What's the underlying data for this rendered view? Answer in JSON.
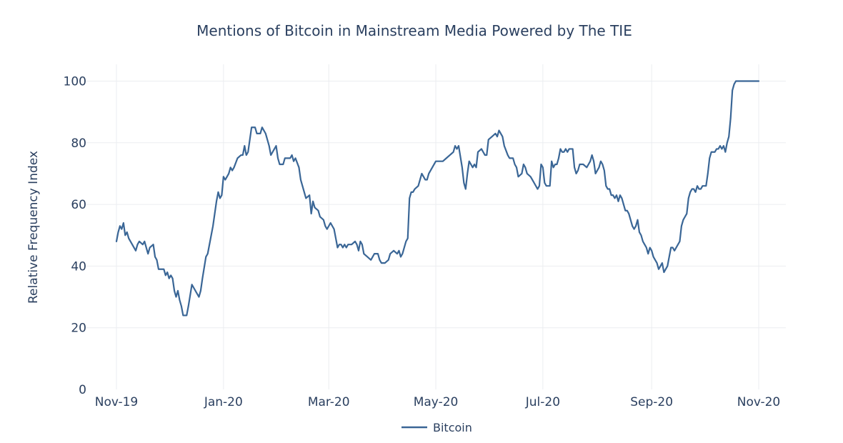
{
  "chart_data": {
    "type": "line",
    "title": "Mentions of Bitcoin in Mainstream Media Powered by The TIE",
    "xlabel": "",
    "ylabel": "Relative Frequency Index",
    "ylim": [
      0,
      100
    ],
    "yticks": [
      0,
      20,
      40,
      60,
      80,
      100
    ],
    "xlim": [
      0,
      365
    ],
    "xticks": [
      {
        "x": 0,
        "label": "Nov-19"
      },
      {
        "x": 61,
        "label": "Jan-20"
      },
      {
        "x": 121,
        "label": "Mar-20"
      },
      {
        "x": 182,
        "label": "May-20"
      },
      {
        "x": 243,
        "label": "Jul-20"
      },
      {
        "x": 305,
        "label": "Sep-20"
      },
      {
        "x": 366,
        "label": "Nov-20"
      }
    ],
    "grid": true,
    "legend": {
      "position": "bottom-center",
      "entries": [
        "Bitcoin"
      ]
    },
    "series": [
      {
        "name": "Bitcoin",
        "color": "#3a6696",
        "points": [
          [
            0,
            48
          ],
          [
            1,
            51
          ],
          [
            2,
            53
          ],
          [
            3,
            52
          ],
          [
            4,
            54
          ],
          [
            5,
            50
          ],
          [
            6,
            51
          ],
          [
            7,
            49
          ],
          [
            9,
            47
          ],
          [
            11,
            45
          ],
          [
            12,
            47
          ],
          [
            13,
            48
          ],
          [
            15,
            47
          ],
          [
            16,
            48
          ],
          [
            18,
            44
          ],
          [
            19,
            46
          ],
          [
            21,
            47
          ],
          [
            22,
            43
          ],
          [
            23,
            42
          ],
          [
            24,
            39
          ],
          [
            27,
            39
          ],
          [
            28,
            37
          ],
          [
            29,
            38
          ],
          [
            30,
            36
          ],
          [
            31,
            37
          ],
          [
            32,
            36
          ],
          [
            33,
            32
          ],
          [
            34,
            30
          ],
          [
            35,
            32
          ],
          [
            36,
            29
          ],
          [
            37,
            27
          ],
          [
            38,
            24
          ],
          [
            40,
            24
          ],
          [
            41,
            27
          ],
          [
            43,
            34
          ],
          [
            44,
            33
          ],
          [
            46,
            31
          ],
          [
            47,
            30
          ],
          [
            48,
            32
          ],
          [
            49,
            36
          ],
          [
            51,
            43
          ],
          [
            52,
            44
          ],
          [
            55,
            53
          ],
          [
            57,
            61
          ],
          [
            58,
            64
          ],
          [
            59,
            62
          ],
          [
            60,
            63
          ],
          [
            61,
            69
          ],
          [
            62,
            68
          ],
          [
            63,
            69
          ],
          [
            64,
            70
          ],
          [
            65,
            72
          ],
          [
            66,
            71
          ],
          [
            67,
            72
          ],
          [
            69,
            75
          ],
          [
            71,
            76
          ],
          [
            72,
            76
          ],
          [
            73,
            79
          ],
          [
            74,
            76
          ],
          [
            75,
            77
          ],
          [
            76,
            81
          ],
          [
            77,
            85
          ],
          [
            79,
            85
          ],
          [
            80,
            83
          ],
          [
            82,
            83
          ],
          [
            83,
            85
          ],
          [
            85,
            83
          ],
          [
            87,
            79
          ],
          [
            88,
            76
          ],
          [
            89,
            77
          ],
          [
            90,
            78
          ],
          [
            91,
            79
          ],
          [
            92,
            75
          ],
          [
            93,
            73
          ],
          [
            95,
            73
          ],
          [
            96,
            75
          ],
          [
            99,
            75
          ],
          [
            100,
            76
          ],
          [
            101,
            74
          ],
          [
            102,
            75
          ],
          [
            104,
            72
          ],
          [
            105,
            68
          ],
          [
            106,
            66
          ],
          [
            108,
            62
          ],
          [
            110,
            63
          ],
          [
            111,
            57
          ],
          [
            112,
            61
          ],
          [
            113,
            59
          ],
          [
            115,
            58
          ],
          [
            116,
            56
          ],
          [
            118,
            55
          ],
          [
            119,
            53
          ],
          [
            120,
            52
          ],
          [
            122,
            54
          ],
          [
            124,
            52
          ],
          [
            125,
            49
          ],
          [
            126,
            46
          ],
          [
            127,
            47
          ],
          [
            128,
            47
          ],
          [
            129,
            46
          ],
          [
            130,
            47
          ],
          [
            131,
            46
          ],
          [
            132,
            47
          ],
          [
            134,
            47
          ],
          [
            136,
            48
          ],
          [
            137,
            47
          ],
          [
            138,
            45
          ],
          [
            139,
            48
          ],
          [
            140,
            47
          ],
          [
            141,
            44
          ],
          [
            143,
            43
          ],
          [
            145,
            42
          ],
          [
            147,
            44
          ],
          [
            149,
            44
          ],
          [
            150,
            42
          ],
          [
            151,
            41
          ],
          [
            153,
            41
          ],
          [
            155,
            42
          ],
          [
            156,
            44
          ],
          [
            158,
            45
          ],
          [
            160,
            44
          ],
          [
            161,
            45
          ],
          [
            162,
            43
          ],
          [
            163,
            44
          ],
          [
            165,
            48
          ],
          [
            166,
            49
          ],
          [
            167,
            62
          ],
          [
            168,
            64
          ],
          [
            169,
            64
          ],
          [
            170,
            65
          ],
          [
            172,
            66
          ],
          [
            174,
            70
          ],
          [
            175,
            69
          ],
          [
            176,
            68
          ],
          [
            177,
            68
          ],
          [
            178,
            70
          ],
          [
            180,
            72
          ],
          [
            182,
            74
          ],
          [
            184,
            74
          ],
          [
            186,
            74
          ],
          [
            188,
            75
          ],
          [
            190,
            76
          ],
          [
            192,
            77
          ],
          [
            193,
            79
          ],
          [
            194,
            78
          ],
          [
            195,
            79
          ],
          [
            197,
            72
          ],
          [
            198,
            67
          ],
          [
            199,
            65
          ],
          [
            200,
            70
          ],
          [
            201,
            74
          ],
          [
            203,
            72
          ],
          [
            204,
            73
          ],
          [
            205,
            72
          ],
          [
            206,
            77
          ],
          [
            208,
            78
          ],
          [
            209,
            77
          ],
          [
            210,
            76
          ],
          [
            211,
            76
          ],
          [
            212,
            81
          ],
          [
            214,
            82
          ],
          [
            216,
            83
          ],
          [
            217,
            82
          ],
          [
            218,
            84
          ],
          [
            220,
            82
          ],
          [
            221,
            79
          ],
          [
            223,
            76
          ],
          [
            224,
            75
          ],
          [
            226,
            75
          ],
          [
            227,
            73
          ],
          [
            228,
            72
          ],
          [
            229,
            69
          ],
          [
            231,
            70
          ],
          [
            232,
            73
          ],
          [
            233,
            72
          ],
          [
            234,
            70
          ],
          [
            236,
            69
          ],
          [
            237,
            68
          ],
          [
            238,
            67
          ],
          [
            240,
            65
          ],
          [
            241,
            66
          ],
          [
            242,
            73
          ],
          [
            243,
            72
          ],
          [
            244,
            67
          ],
          [
            245,
            66
          ],
          [
            246,
            66
          ],
          [
            247,
            66
          ],
          [
            248,
            74
          ],
          [
            249,
            72
          ],
          [
            250,
            73
          ],
          [
            251,
            73
          ],
          [
            252,
            75
          ],
          [
            253,
            78
          ],
          [
            254,
            77
          ],
          [
            255,
            77
          ],
          [
            256,
            78
          ],
          [
            257,
            77
          ],
          [
            258,
            78
          ],
          [
            260,
            78
          ],
          [
            261,
            72
          ],
          [
            262,
            70
          ],
          [
            263,
            71
          ],
          [
            264,
            73
          ],
          [
            266,
            73
          ],
          [
            268,
            72
          ],
          [
            269,
            73
          ],
          [
            270,
            74
          ],
          [
            271,
            76
          ],
          [
            272,
            74
          ],
          [
            273,
            70
          ],
          [
            274,
            71
          ],
          [
            275,
            72
          ],
          [
            276,
            74
          ],
          [
            277,
            73
          ],
          [
            278,
            71
          ],
          [
            279,
            66
          ],
          [
            280,
            65
          ],
          [
            281,
            65
          ],
          [
            282,
            63
          ],
          [
            283,
            63
          ],
          [
            284,
            62
          ],
          [
            285,
            63
          ],
          [
            286,
            61
          ],
          [
            287,
            63
          ],
          [
            288,
            62
          ],
          [
            289,
            60
          ],
          [
            290,
            58
          ],
          [
            291,
            58
          ],
          [
            292,
            57
          ],
          [
            293,
            55
          ],
          [
            294,
            53
          ],
          [
            295,
            52
          ],
          [
            296,
            53
          ],
          [
            297,
            55
          ],
          [
            298,
            51
          ],
          [
            299,
            50
          ],
          [
            300,
            48
          ],
          [
            301,
            47
          ],
          [
            302,
            46
          ],
          [
            303,
            44
          ],
          [
            304,
            46
          ],
          [
            305,
            45
          ],
          [
            306,
            43
          ],
          [
            307,
            42
          ],
          [
            308,
            41
          ],
          [
            309,
            39
          ],
          [
            310,
            40
          ],
          [
            311,
            41
          ],
          [
            312,
            38
          ],
          [
            313,
            39
          ],
          [
            314,
            40
          ],
          [
            315,
            43
          ],
          [
            316,
            46
          ],
          [
            317,
            46
          ],
          [
            318,
            45
          ],
          [
            319,
            46
          ],
          [
            320,
            47
          ],
          [
            321,
            48
          ],
          [
            322,
            53
          ],
          [
            323,
            55
          ],
          [
            324,
            56
          ],
          [
            325,
            57
          ],
          [
            326,
            62
          ],
          [
            327,
            64
          ],
          [
            328,
            65
          ],
          [
            329,
            65
          ],
          [
            330,
            64
          ],
          [
            331,
            66
          ],
          [
            332,
            65
          ],
          [
            333,
            65
          ],
          [
            334,
            66
          ],
          [
            335,
            66
          ],
          [
            336,
            66
          ],
          [
            337,
            70
          ],
          [
            338,
            75
          ],
          [
            339,
            77
          ],
          [
            340,
            77
          ],
          [
            341,
            77
          ],
          [
            342,
            78
          ],
          [
            343,
            78
          ],
          [
            344,
            79
          ],
          [
            345,
            78
          ],
          [
            346,
            79
          ],
          [
            347,
            77
          ],
          [
            348,
            80
          ],
          [
            349,
            82
          ],
          [
            350,
            88
          ],
          [
            351,
            97
          ],
          [
            352,
            99
          ],
          [
            353,
            100
          ],
          [
            354,
            100
          ],
          [
            355,
            100
          ],
          [
            356,
            100
          ],
          [
            357,
            100
          ],
          [
            358,
            100
          ],
          [
            359,
            100
          ],
          [
            360,
            100
          ],
          [
            361,
            100
          ],
          [
            362,
            100
          ],
          [
            363,
            100
          ],
          [
            364,
            100
          ],
          [
            365,
            100
          ],
          [
            366,
            100
          ]
        ]
      }
    ]
  }
}
